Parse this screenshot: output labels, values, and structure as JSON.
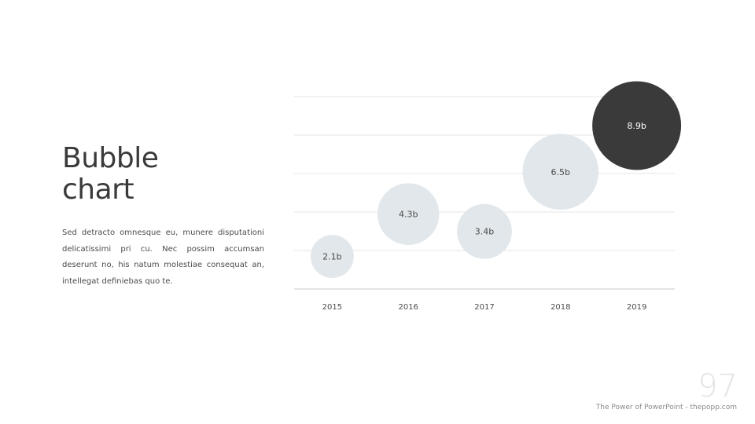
{
  "slide": {
    "title_line1": "Bubble",
    "title_line2": "chart",
    "body": "Sed detracto omnesque eu, munere disputationi delicatissimi pri cu. Nec possim accumsan deserunt no, his natum molestiae consequat an, intellegat definiebas quo te.",
    "page_number": "97",
    "footer": "The Power of PowerPoint - thepopp.com"
  },
  "colors": {
    "bubble": "#e1e7ea",
    "bubble_highlight": "#3a3a3a",
    "bubble_text": "#4a4a4a",
    "bubble_highlight_text": "#ffffff",
    "grid": "#e6e6e6",
    "axis": "#c8c8c8",
    "tick_text": "#4a4a4a"
  },
  "chart_data": {
    "type": "scatter",
    "title": "",
    "xlabel": "",
    "ylabel": "",
    "categories": [
      "2015",
      "2016",
      "2017",
      "2018",
      "2019"
    ],
    "values": [
      2.1,
      4.3,
      3.4,
      6.5,
      8.9
    ],
    "labels": [
      "2.1b",
      "4.3b",
      "3.4b",
      "6.5b",
      "8.9b"
    ],
    "highlight_index": 4,
    "ylim": [
      0,
      10
    ],
    "grid": true,
    "grid_lines": 5,
    "y_axis_visible": false
  }
}
